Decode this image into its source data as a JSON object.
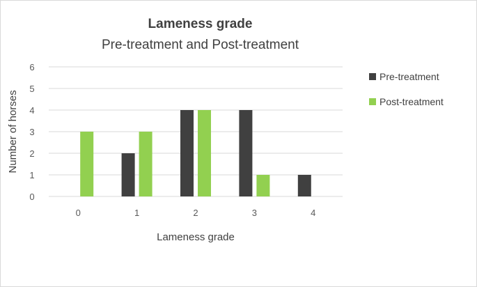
{
  "chart_data": {
    "type": "bar",
    "title": "Lameness grade",
    "subtitle": "Pre-treatment and Post-treatment",
    "xlabel": "Lameness grade",
    "ylabel": "Number of horses",
    "categories": [
      "0",
      "1",
      "2",
      "3",
      "4"
    ],
    "series": [
      {
        "name": "Pre-treatment",
        "values": [
          0,
          2,
          4,
          4,
          1
        ],
        "color": "#404040"
      },
      {
        "name": "Post-treatment",
        "values": [
          3,
          3,
          4,
          1,
          0
        ],
        "color": "#92d050"
      }
    ],
    "ylim": [
      0,
      6
    ],
    "yticks": [
      "0",
      "1",
      "2",
      "3",
      "4",
      "5",
      "6"
    ],
    "grid": true,
    "legend_position": "right"
  }
}
